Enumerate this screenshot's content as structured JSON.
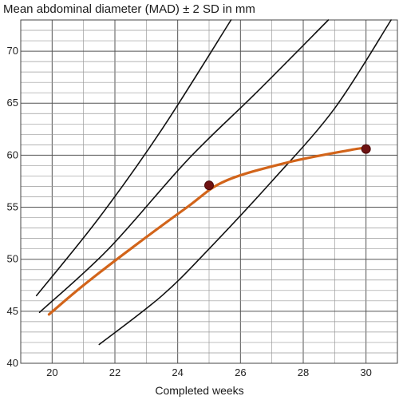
{
  "chart_data": {
    "type": "line",
    "title": "Mean abdominal diameter (MAD) ± 2 SD in mm",
    "xlabel": "Completed weeks",
    "ylabel": "",
    "xlim": [
      19,
      31
    ],
    "ylim": [
      40,
      73
    ],
    "x_ticks": [
      20,
      22,
      24,
      26,
      28,
      30
    ],
    "y_ticks": [
      40,
      45,
      50,
      55,
      60,
      65,
      70
    ],
    "x_minor_step": 1,
    "y_minor_step": 1,
    "grid": true,
    "colors": {
      "reference": "#111111",
      "patient": "#d2641a",
      "points": "#6e1212"
    },
    "series": [
      {
        "role": "reference",
        "values": [
          [
            19.5,
            46.5
          ],
          [
            21.5,
            54
          ],
          [
            23.5,
            62.5
          ],
          [
            25.7,
            73
          ]
        ]
      },
      {
        "role": "reference",
        "values": [
          [
            19.6,
            44.9
          ],
          [
            21.8,
            51
          ],
          [
            24.3,
            59.5
          ],
          [
            26.5,
            66
          ],
          [
            28.8,
            73
          ]
        ]
      },
      {
        "role": "reference",
        "values": [
          [
            21.5,
            41.8
          ],
          [
            23.5,
            46.5
          ],
          [
            25,
            51
          ],
          [
            27,
            57.5
          ],
          [
            29,
            64.5
          ],
          [
            30.8,
            73
          ]
        ]
      },
      {
        "role": "patient",
        "values": [
          [
            19.9,
            44.7
          ],
          [
            21,
            47.5
          ],
          [
            22.5,
            51
          ],
          [
            24.3,
            55
          ],
          [
            25.5,
            57.5
          ],
          [
            27.5,
            59.3
          ],
          [
            29.5,
            60.5
          ],
          [
            30,
            60.7
          ]
        ]
      }
    ],
    "points": [
      [
        25,
        57.1
      ],
      [
        30,
        60.6
      ]
    ]
  }
}
